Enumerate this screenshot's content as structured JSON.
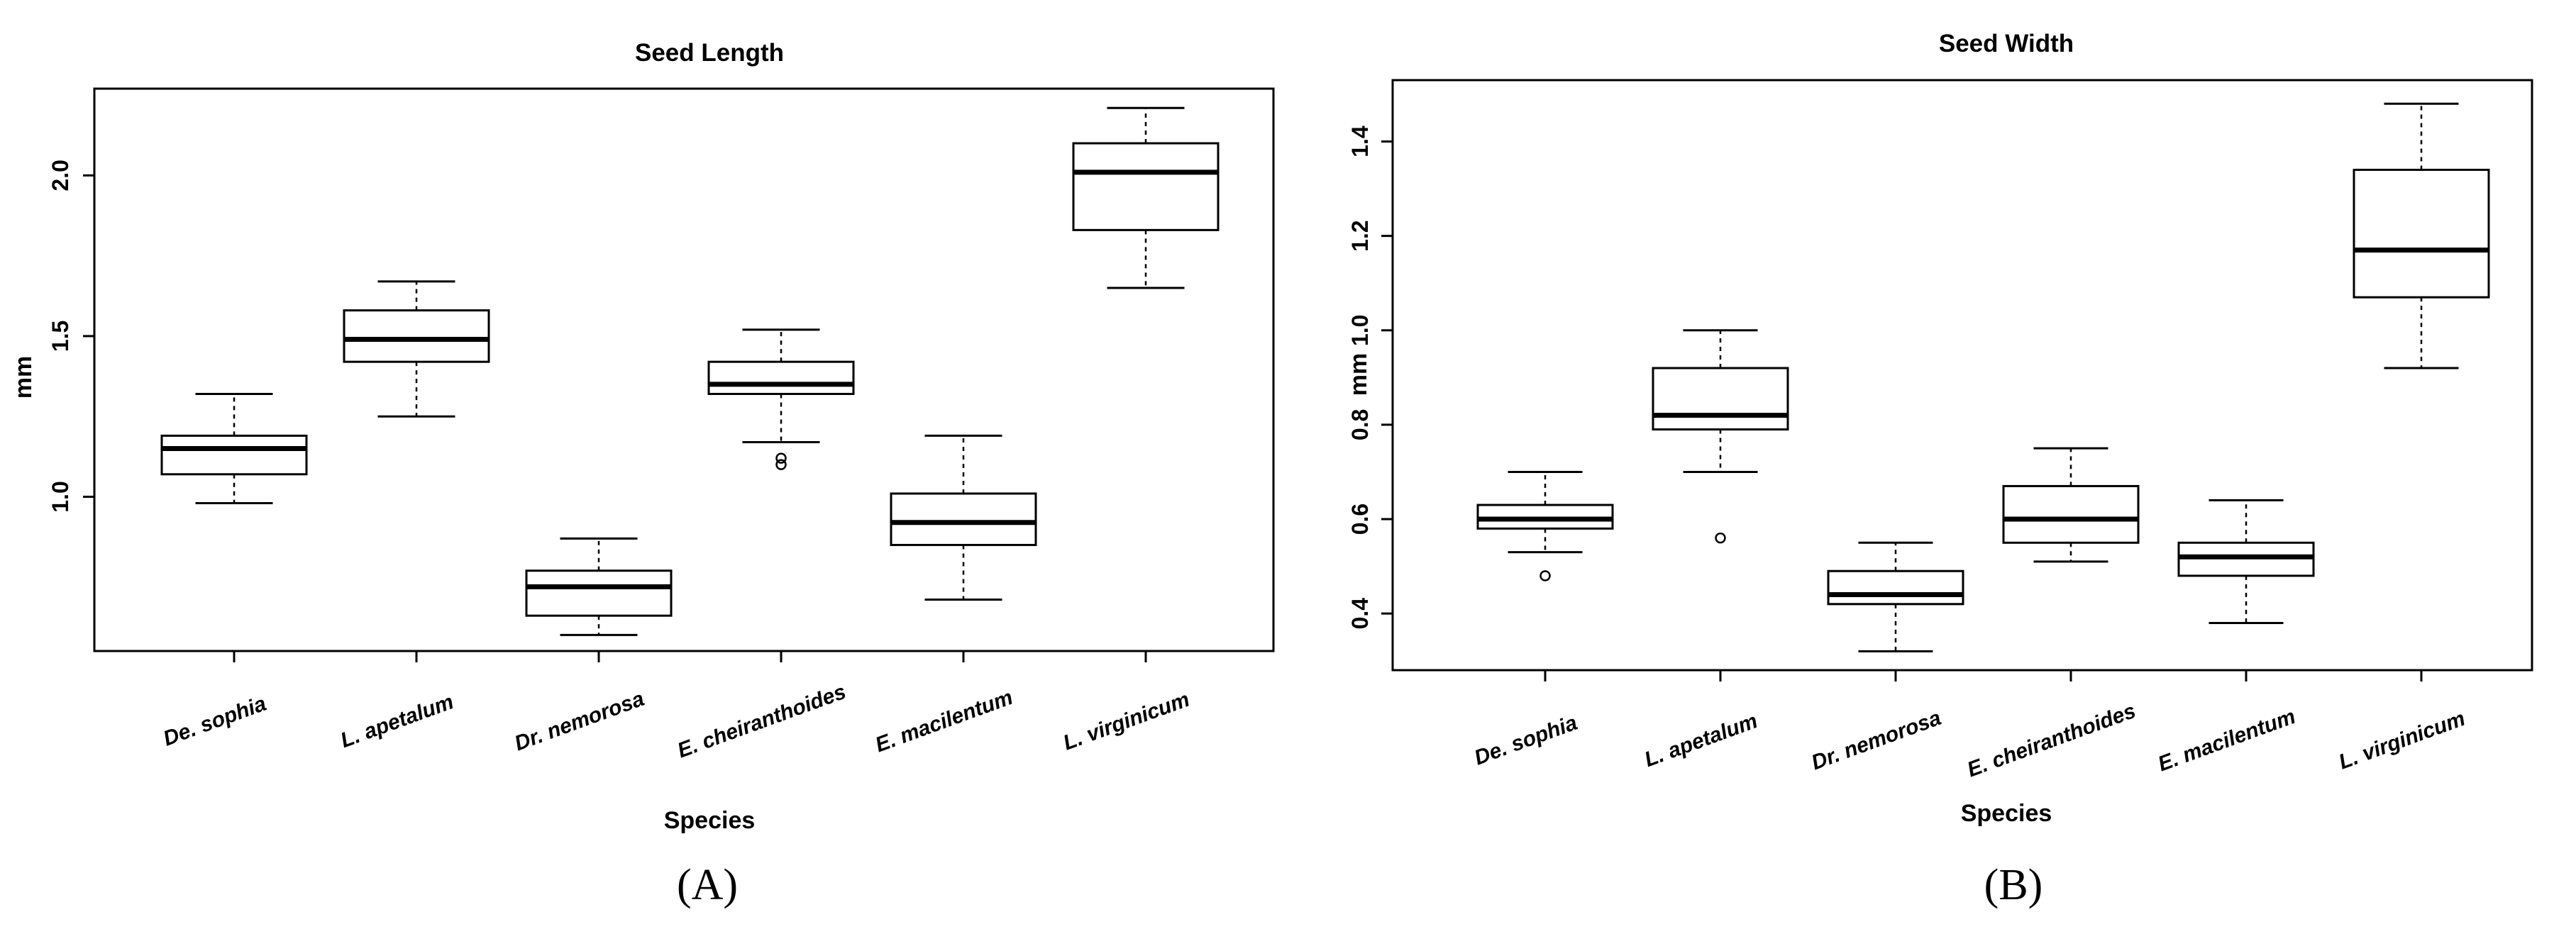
{
  "chart_data": [
    {
      "type": "boxplot",
      "title": "Seed Length",
      "xlabel": "Species",
      "ylabel": "mm",
      "panel_label": "(A)",
      "categories": [
        "De. sophia",
        "L. apetalum",
        "Dr. nemorosa",
        "E. cheiranthoides",
        "E. macilentum",
        "L. virginicum"
      ],
      "ylim": [
        0.52,
        2.27
      ],
      "yticks": [
        {
          "value": 1.0,
          "label": "1.0"
        },
        {
          "value": 1.5,
          "label": "1.5"
        },
        {
          "value": 2.0,
          "label": "2.0"
        }
      ],
      "boxes": [
        {
          "whisker_low": 0.98,
          "q1": 1.07,
          "median": 1.15,
          "q3": 1.19,
          "whisker_high": 1.32,
          "outliers": []
        },
        {
          "whisker_low": 1.25,
          "q1": 1.42,
          "median": 1.49,
          "q3": 1.58,
          "whisker_high": 1.67,
          "outliers": []
        },
        {
          "whisker_low": 0.57,
          "q1": 0.63,
          "median": 0.72,
          "q3": 0.77,
          "whisker_high": 0.87,
          "outliers": []
        },
        {
          "whisker_low": 1.17,
          "q1": 1.32,
          "median": 1.35,
          "q3": 1.42,
          "whisker_high": 1.52,
          "outliers": [
            1.12,
            1.1
          ]
        },
        {
          "whisker_low": 0.68,
          "q1": 0.85,
          "median": 0.92,
          "q3": 1.01,
          "whisker_high": 1.19,
          "outliers": []
        },
        {
          "whisker_low": 1.65,
          "q1": 1.83,
          "median": 2.01,
          "q3": 2.1,
          "whisker_high": 2.21,
          "outliers": []
        }
      ]
    },
    {
      "type": "boxplot",
      "title": "Seed Width",
      "xlabel": "Species",
      "ylabel": "mm",
      "panel_label": "(B)",
      "categories": [
        "De. sophia",
        "L. apetalum",
        "Dr. nemorosa",
        "E. cheiranthoides",
        "E. macilentum",
        "L. virginicum"
      ],
      "ylim": [
        0.28,
        1.53
      ],
      "yticks": [
        {
          "value": 0.4,
          "label": "0.4"
        },
        {
          "value": 0.6,
          "label": "0.6"
        },
        {
          "value": 0.8,
          "label": "0.8"
        },
        {
          "value": 1.0,
          "label": "1.0"
        },
        {
          "value": 1.2,
          "label": "1.2"
        },
        {
          "value": 1.4,
          "label": "1.4"
        }
      ],
      "boxes": [
        {
          "whisker_low": 0.53,
          "q1": 0.58,
          "median": 0.6,
          "q3": 0.63,
          "whisker_high": 0.7,
          "outliers": [
            0.48
          ]
        },
        {
          "whisker_low": 0.7,
          "q1": 0.79,
          "median": 0.82,
          "q3": 0.92,
          "whisker_high": 1.0,
          "outliers": [
            0.56
          ]
        },
        {
          "whisker_low": 0.32,
          "q1": 0.42,
          "median": 0.44,
          "q3": 0.49,
          "whisker_high": 0.55,
          "outliers": []
        },
        {
          "whisker_low": 0.51,
          "q1": 0.55,
          "median": 0.6,
          "q3": 0.67,
          "whisker_high": 0.75,
          "outliers": []
        },
        {
          "whisker_low": 0.38,
          "q1": 0.48,
          "median": 0.52,
          "q3": 0.55,
          "whisker_high": 0.64,
          "outliers": []
        },
        {
          "whisker_low": 0.92,
          "q1": 1.07,
          "median": 1.17,
          "q3": 1.34,
          "whisker_high": 1.48,
          "outliers": []
        }
      ]
    }
  ]
}
